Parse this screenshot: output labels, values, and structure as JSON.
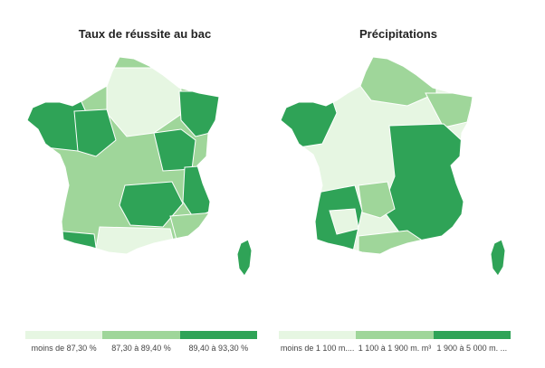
{
  "colors": {
    "light": "#e6f6e2",
    "medium": "#9fd69a",
    "dark": "#2fa357",
    "border": "#ffffff"
  },
  "maps": [
    {
      "title": "Taux de réussite au bac",
      "legend": [
        "moins de 87,30 %",
        "87,30 à 89,40 %",
        "89,40 à 93,30 %"
      ]
    },
    {
      "title": "Précipitations",
      "legend": [
        "moins de 1 100 m....",
        "1 100 à 1 900 m. m³",
        "1 900 à 5 000 m. ..."
      ]
    }
  ]
}
